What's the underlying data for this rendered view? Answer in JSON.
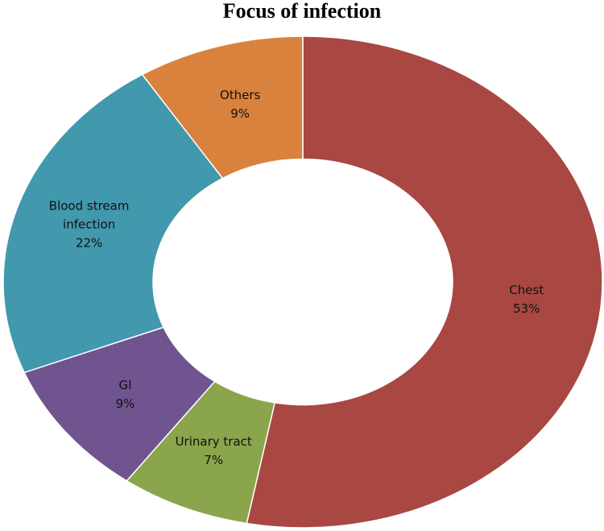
{
  "chart_data": {
    "type": "donut",
    "title": "Focus of infection",
    "categories": [
      "Chest",
      "Urinary tract",
      "GI",
      "Blood stream infection",
      "Others"
    ],
    "values": [
      53,
      7,
      9,
      22,
      9
    ],
    "value_labels": [
      "53%",
      "7%",
      "9%",
      "22%",
      "9%"
    ],
    "colors": [
      "#a94743",
      "#8aa54c",
      "#6f548f",
      "#4298ad",
      "#d9823d"
    ]
  }
}
